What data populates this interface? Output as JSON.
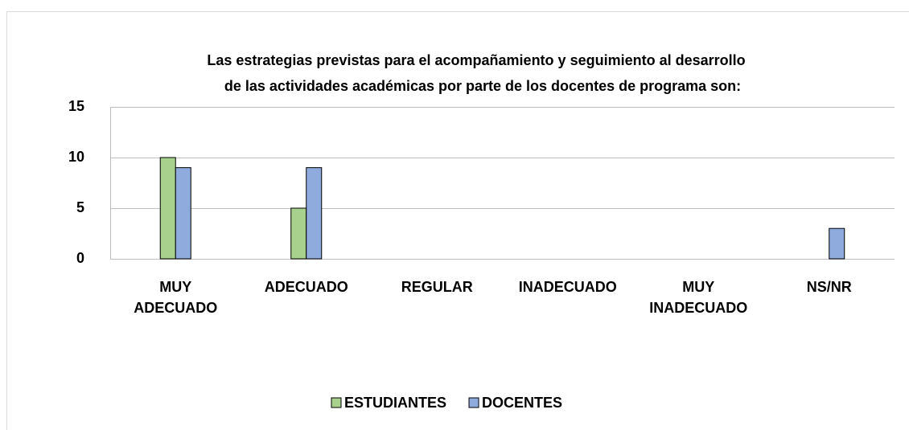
{
  "chart_data": {
    "type": "bar",
    "title": [
      "Las estrategias previstas para el acompañamiento y seguimiento al desarrollo",
      "de las actividades académicas por parte de los docentes de programa son:"
    ],
    "categories": [
      "MUY ADECUADO",
      "ADECUADO",
      "REGULAR",
      "INADECUADO",
      "MUY INADECUADO",
      "NS/NR"
    ],
    "series": [
      {
        "name": "ESTUDIANTES",
        "color": "#a9d18e",
        "values": [
          10,
          5,
          0,
          0,
          0,
          0
        ]
      },
      {
        "name": "DOCENTES",
        "color": "#8faadc",
        "values": [
          9,
          9,
          0,
          0,
          0,
          3
        ]
      }
    ],
    "ylim": [
      0,
      15
    ],
    "yticks": [
      0,
      5,
      10,
      15
    ],
    "grid": true,
    "legend": "bottom"
  }
}
